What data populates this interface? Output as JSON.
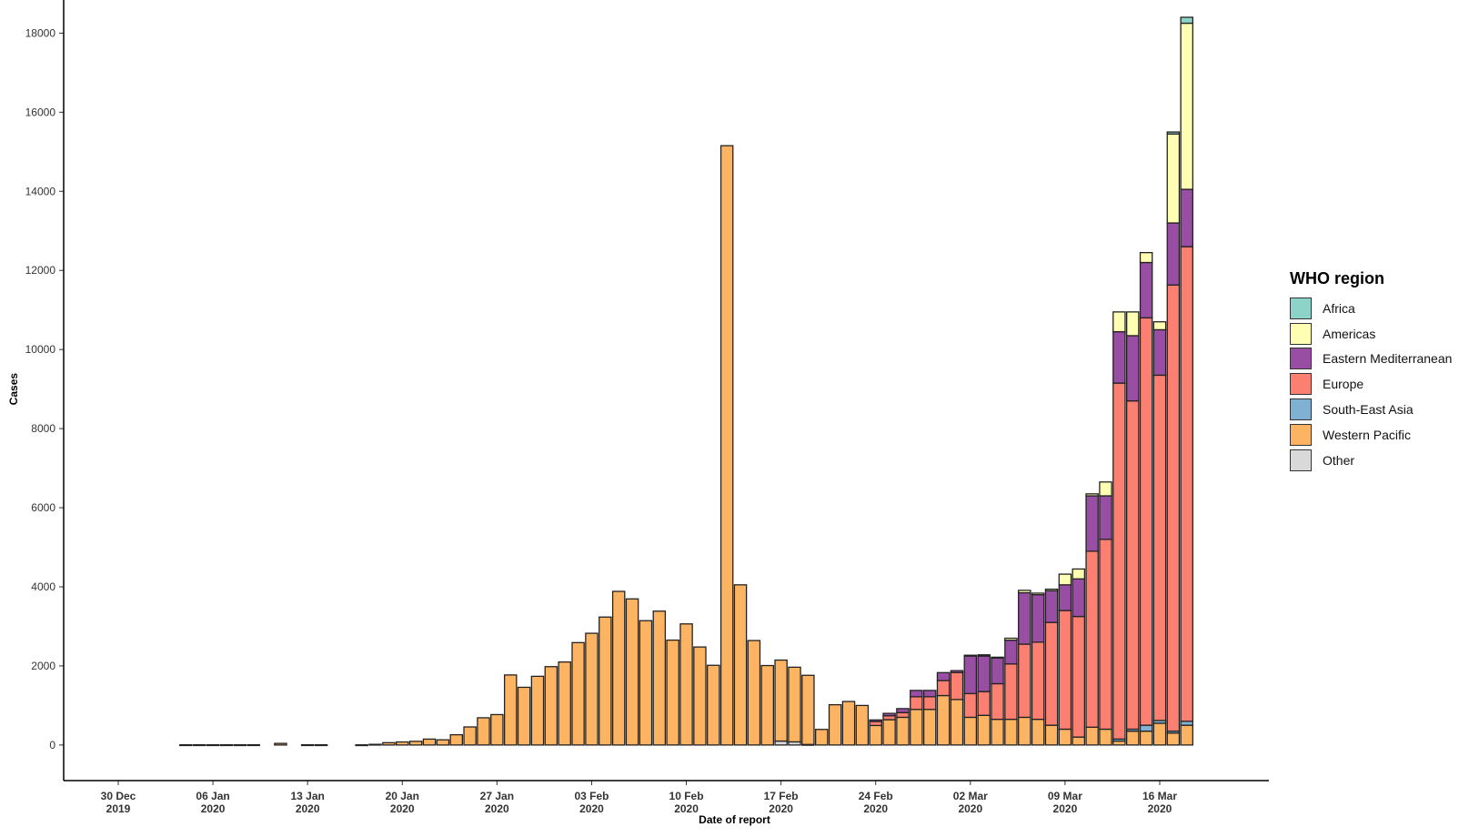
{
  "chart_data": {
    "type": "bar",
    "stacked": true,
    "xlabel": "Date of report",
    "ylabel": "Cases",
    "ylim": [
      -900,
      18400
    ],
    "yticks": [
      0,
      2000,
      4000,
      6000,
      8000,
      10000,
      12000,
      14000,
      16000,
      18000
    ],
    "x_start": "2019-12-30",
    "xticks": [
      {
        "date": "2019-12-30",
        "label": [
          "30 Dec",
          "2019"
        ]
      },
      {
        "date": "2020-01-06",
        "label": [
          "06 Jan",
          "2020"
        ]
      },
      {
        "date": "2020-01-13",
        "label": [
          "13 Jan",
          "2020"
        ]
      },
      {
        "date": "2020-01-20",
        "label": [
          "20 Jan",
          "2020"
        ]
      },
      {
        "date": "2020-01-27",
        "label": [
          "27 Jan",
          "2020"
        ]
      },
      {
        "date": "2020-02-03",
        "label": [
          "03 Feb",
          "2020"
        ]
      },
      {
        "date": "2020-02-10",
        "label": [
          "10 Feb",
          "2020"
        ]
      },
      {
        "date": "2020-02-17",
        "label": [
          "17 Feb",
          "2020"
        ]
      },
      {
        "date": "2020-02-24",
        "label": [
          "24 Feb",
          "2020"
        ]
      },
      {
        "date": "2020-03-02",
        "label": [
          "02 Mar",
          "2020"
        ]
      },
      {
        "date": "2020-03-09",
        "label": [
          "09 Mar",
          "2020"
        ]
      },
      {
        "date": "2020-03-16",
        "label": [
          "16 Mar",
          "2020"
        ]
      }
    ],
    "legend_title": "WHO region",
    "legend_position": "right",
    "grid": false,
    "series": [
      {
        "name": "Africa",
        "color": "#8dd3c7"
      },
      {
        "name": "Americas",
        "color": "#ffffb3"
      },
      {
        "name": "Eastern Mediterranean",
        "color": "#984ea3"
      },
      {
        "name": "Europe",
        "color": "#fb8072"
      },
      {
        "name": "South-East Asia",
        "color": "#80b1d3"
      },
      {
        "name": "Western Pacific",
        "color": "#fdb462"
      },
      {
        "name": "Other",
        "color": "#d9d9d9"
      }
    ],
    "bars": [
      {
        "date": "2020-01-04",
        "values": {
          "Western Pacific": 5
        }
      },
      {
        "date": "2020-01-05",
        "values": {
          "Western Pacific": 5
        }
      },
      {
        "date": "2020-01-06",
        "values": {
          "Western Pacific": 5
        }
      },
      {
        "date": "2020-01-07",
        "values": {
          "Western Pacific": 5
        }
      },
      {
        "date": "2020-01-08",
        "values": {
          "Western Pacific": 5
        }
      },
      {
        "date": "2020-01-09",
        "values": {
          "Western Pacific": 5
        }
      },
      {
        "date": "2020-01-11",
        "values": {
          "Western Pacific": 41
        }
      },
      {
        "date": "2020-01-13",
        "values": {
          "Western Pacific": 5
        }
      },
      {
        "date": "2020-01-14",
        "values": {
          "Western Pacific": 5
        }
      },
      {
        "date": "2020-01-17",
        "values": {
          "Western Pacific": 4
        }
      },
      {
        "date": "2020-01-18",
        "values": {
          "Western Pacific": 17
        }
      },
      {
        "date": "2020-01-19",
        "values": {
          "Western Pacific": 59
        }
      },
      {
        "date": "2020-01-20",
        "values": {
          "Western Pacific": 77
        }
      },
      {
        "date": "2020-01-21",
        "values": {
          "Western Pacific": 93
        }
      },
      {
        "date": "2020-01-22",
        "values": {
          "Western Pacific": 149
        }
      },
      {
        "date": "2020-01-23",
        "values": {
          "Western Pacific": 131
        }
      },
      {
        "date": "2020-01-24",
        "values": {
          "Western Pacific": 259
        }
      },
      {
        "date": "2020-01-25",
        "values": {
          "Western Pacific": 457
        }
      },
      {
        "date": "2020-01-26",
        "values": {
          "Western Pacific": 688
        }
      },
      {
        "date": "2020-01-27",
        "values": {
          "Western Pacific": 769
        }
      },
      {
        "date": "2020-01-28",
        "values": {
          "Western Pacific": 1771
        }
      },
      {
        "date": "2020-01-29",
        "values": {
          "Western Pacific": 1459
        }
      },
      {
        "date": "2020-01-30",
        "values": {
          "Western Pacific": 1737
        }
      },
      {
        "date": "2020-01-31",
        "values": {
          "Western Pacific": 1981
        }
      },
      {
        "date": "2020-02-01",
        "values": {
          "Western Pacific": 2099
        }
      },
      {
        "date": "2020-02-02",
        "values": {
          "Western Pacific": 2589
        }
      },
      {
        "date": "2020-02-03",
        "values": {
          "Western Pacific": 2825
        }
      },
      {
        "date": "2020-02-04",
        "values": {
          "Western Pacific": 3235
        }
      },
      {
        "date": "2020-02-05",
        "values": {
          "Western Pacific": 3884
        }
      },
      {
        "date": "2020-02-06",
        "values": {
          "Western Pacific": 3694
        }
      },
      {
        "date": "2020-02-07",
        "values": {
          "Western Pacific": 3143
        }
      },
      {
        "date": "2020-02-08",
        "values": {
          "Western Pacific": 3385
        }
      },
      {
        "date": "2020-02-09",
        "values": {
          "Western Pacific": 2652
        }
      },
      {
        "date": "2020-02-10",
        "values": {
          "Western Pacific": 3062
        }
      },
      {
        "date": "2020-02-11",
        "values": {
          "Western Pacific": 2478
        }
      },
      {
        "date": "2020-02-12",
        "values": {
          "Western Pacific": 2015
        }
      },
      {
        "date": "2020-02-13",
        "values": {
          "Western Pacific": 15153
        }
      },
      {
        "date": "2020-02-14",
        "values": {
          "Western Pacific": 4050
        }
      },
      {
        "date": "2020-02-15",
        "values": {
          "Western Pacific": 2641
        }
      },
      {
        "date": "2020-02-16",
        "values": {
          "Western Pacific": 2009
        }
      },
      {
        "date": "2020-02-17",
        "values": {
          "Western Pacific": 2048,
          "Other": 99
        }
      },
      {
        "date": "2020-02-18",
        "values": {
          "Western Pacific": 1888,
          "Other": 79
        }
      },
      {
        "date": "2020-02-19",
        "values": {
          "Western Pacific": 1749,
          "Other": 13
        }
      },
      {
        "date": "2020-02-20",
        "values": {
          "Western Pacific": 394
        }
      },
      {
        "date": "2020-02-21",
        "values": {
          "Western Pacific": 1018
        }
      },
      {
        "date": "2020-02-22",
        "values": {
          "Western Pacific": 1100
        }
      },
      {
        "date": "2020-02-23",
        "values": {
          "Western Pacific": 1000
        }
      },
      {
        "date": "2020-02-24",
        "values": {
          "Western Pacific": 494,
          "Europe": 100,
          "Eastern Mediterranean": 40
        }
      },
      {
        "date": "2020-02-25",
        "values": {
          "Western Pacific": 640,
          "Europe": 100,
          "Eastern Mediterranean": 60
        }
      },
      {
        "date": "2020-02-26",
        "values": {
          "Western Pacific": 700,
          "Europe": 120,
          "Eastern Mediterranean": 100
        }
      },
      {
        "date": "2020-02-27",
        "values": {
          "Western Pacific": 900,
          "Europe": 320,
          "Eastern Mediterranean": 160
        }
      },
      {
        "date": "2020-02-28",
        "values": {
          "Western Pacific": 900,
          "Europe": 320,
          "Eastern Mediterranean": 160
        }
      },
      {
        "date": "2020-02-29",
        "values": {
          "Western Pacific": 1250,
          "Europe": 380,
          "Eastern Mediterranean": 200
        }
      },
      {
        "date": "2020-03-01",
        "values": {
          "Western Pacific": 1150,
          "Europe": 680,
          "Eastern Mediterranean": 50
        }
      },
      {
        "date": "2020-03-02",
        "values": {
          "Western Pacific": 700,
          "Europe": 600,
          "Eastern Mediterranean": 950,
          "Americas": 20
        }
      },
      {
        "date": "2020-03-03",
        "values": {
          "Western Pacific": 750,
          "Europe": 600,
          "Eastern Mediterranean": 900,
          "Americas": 30
        }
      },
      {
        "date": "2020-03-04",
        "values": {
          "Western Pacific": 650,
          "Europe": 900,
          "Eastern Mediterranean": 650,
          "Americas": 20
        }
      },
      {
        "date": "2020-03-05",
        "values": {
          "Western Pacific": 650,
          "Europe": 1400,
          "Eastern Mediterranean": 600,
          "Americas": 50
        }
      },
      {
        "date": "2020-03-06",
        "values": {
          "Western Pacific": 700,
          "Europe": 1850,
          "Eastern Mediterranean": 1300,
          "Americas": 60
        }
      },
      {
        "date": "2020-03-07",
        "values": {
          "Western Pacific": 650,
          "Europe": 1950,
          "Eastern Mediterranean": 1200,
          "Americas": 40
        }
      },
      {
        "date": "2020-03-08",
        "values": {
          "Western Pacific": 500,
          "Europe": 2600,
          "Eastern Mediterranean": 800,
          "Americas": 40
        }
      },
      {
        "date": "2020-03-09",
        "values": {
          "Western Pacific": 400,
          "Europe": 3000,
          "Eastern Mediterranean": 650,
          "Americas": 270
        }
      },
      {
        "date": "2020-03-10",
        "values": {
          "Western Pacific": 200,
          "Europe": 3050,
          "Eastern Mediterranean": 950,
          "Americas": 250
        }
      },
      {
        "date": "2020-03-11",
        "values": {
          "Western Pacific": 450,
          "Europe": 4450,
          "Eastern Mediterranean": 1400,
          "Americas": 50
        }
      },
      {
        "date": "2020-03-12",
        "values": {
          "Western Pacific": 400,
          "Europe": 4800,
          "Eastern Mediterranean": 1100,
          "Americas": 350
        }
      },
      {
        "date": "2020-03-13",
        "values": {
          "Western Pacific": 100,
          "South-East Asia": 50,
          "Europe": 9000,
          "Eastern Mediterranean": 1300,
          "Americas": 500
        }
      },
      {
        "date": "2020-03-14",
        "values": {
          "Western Pacific": 350,
          "South-East Asia": 50,
          "Europe": 8300,
          "Eastern Mediterranean": 1650,
          "Americas": 600
        }
      },
      {
        "date": "2020-03-15",
        "values": {
          "Western Pacific": 350,
          "South-East Asia": 150,
          "Europe": 10300,
          "Eastern Mediterranean": 1400,
          "Americas": 250
        }
      },
      {
        "date": "2020-03-16",
        "values": {
          "Western Pacific": 550,
          "South-East Asia": 70,
          "Europe": 8730,
          "Eastern Mediterranean": 1150,
          "Americas": 200
        }
      },
      {
        "date": "2020-03-17",
        "values": {
          "Western Pacific": 300,
          "South-East Asia": 50,
          "Europe": 11280,
          "Eastern Mediterranean": 1570,
          "Americas": 2250,
          "Africa": 50
        }
      },
      {
        "date": "2020-03-18",
        "values": {
          "Western Pacific": 500,
          "South-East Asia": 100,
          "Europe": 12000,
          "Eastern Mediterranean": 1450,
          "Americas": 4200,
          "Africa": 150
        }
      }
    ]
  }
}
